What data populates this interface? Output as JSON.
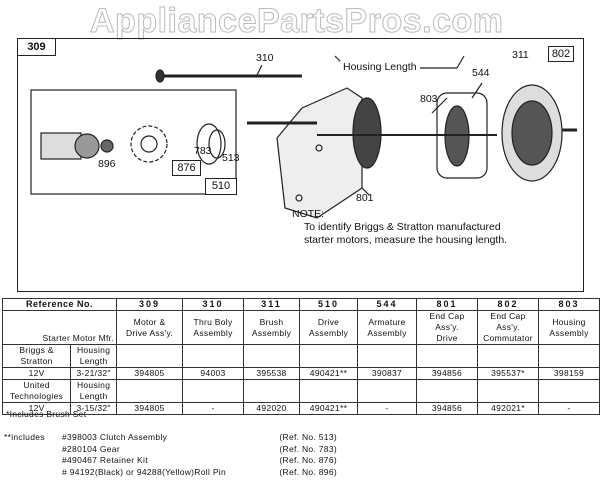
{
  "watermark": "AppliancePartsPros.com",
  "diagram": {
    "ref_main": "309",
    "callouts": {
      "c310": "310",
      "c311": "311",
      "c802": "802",
      "c544": "544",
      "c803": "803",
      "c801": "801",
      "c896": "896",
      "c783": "783",
      "c876": "876",
      "c513": "513",
      "c510": "510"
    },
    "housing_length": "Housing Length",
    "note_title": "NOTE:",
    "note_text_1": "To identify Briggs & Stratton manufactured",
    "note_text_2": "starter motors, measure the housing length."
  },
  "table": {
    "ref_header": "Reference No.",
    "mfr_header": "Starter Motor Mfr.",
    "columns": [
      {
        "ref": "309",
        "desc1": "Motor &",
        "desc2": "Drive Ass'y."
      },
      {
        "ref": "310",
        "desc1": "Thru Boly",
        "desc2": "Assembly"
      },
      {
        "ref": "311",
        "desc1": "Brush",
        "desc2": "Assembly"
      },
      {
        "ref": "510",
        "desc1": "Drive",
        "desc2": "Assembly"
      },
      {
        "ref": "544",
        "desc1": "Armature",
        "desc2": "Assembly"
      },
      {
        "ref": "801",
        "desc1": "End Cap Ass'y.",
        "desc2": "Drive"
      },
      {
        "ref": "802",
        "desc1": "End Cap Ass'y.",
        "desc2": "Commutator"
      },
      {
        "ref": "803",
        "desc1": "Housing",
        "desc2": "Assembly"
      }
    ],
    "groups": [
      {
        "mfr1": "Briggs &",
        "mfr2": "Stratton",
        "hl1": "Housing",
        "hl2": "Length",
        "voltage": "12V",
        "length": "3-21/32\"",
        "parts": [
          "394805",
          "94003",
          "395538",
          "490421**",
          "390837",
          "394856",
          "395537*",
          "398159"
        ]
      },
      {
        "mfr1": "United",
        "mfr2": "Technologies",
        "hl1": "Housing",
        "hl2": "Length",
        "voltage": "12V",
        "length": "3-15/32\"",
        "parts": [
          "394805",
          "-",
          "492020",
          "490421**",
          "-",
          "394856",
          "492021*",
          "-"
        ]
      }
    ]
  },
  "footnotes": {
    "single": "*Includes Brush Set",
    "double_label": "**includes",
    "items": [
      {
        "part": "#398003  Clutch Assembly",
        "ref": "(Ref. No. 513)"
      },
      {
        "part": "#280104  Gear",
        "ref": "(Ref. No. 783)"
      },
      {
        "part": "#490467  Retainer Kit",
        "ref": "(Ref. No. 876)"
      },
      {
        "part": "# 94192(Black) or 94288(Yellow)Roll Pin",
        "ref": "(Ref. No. 896)"
      }
    ]
  }
}
